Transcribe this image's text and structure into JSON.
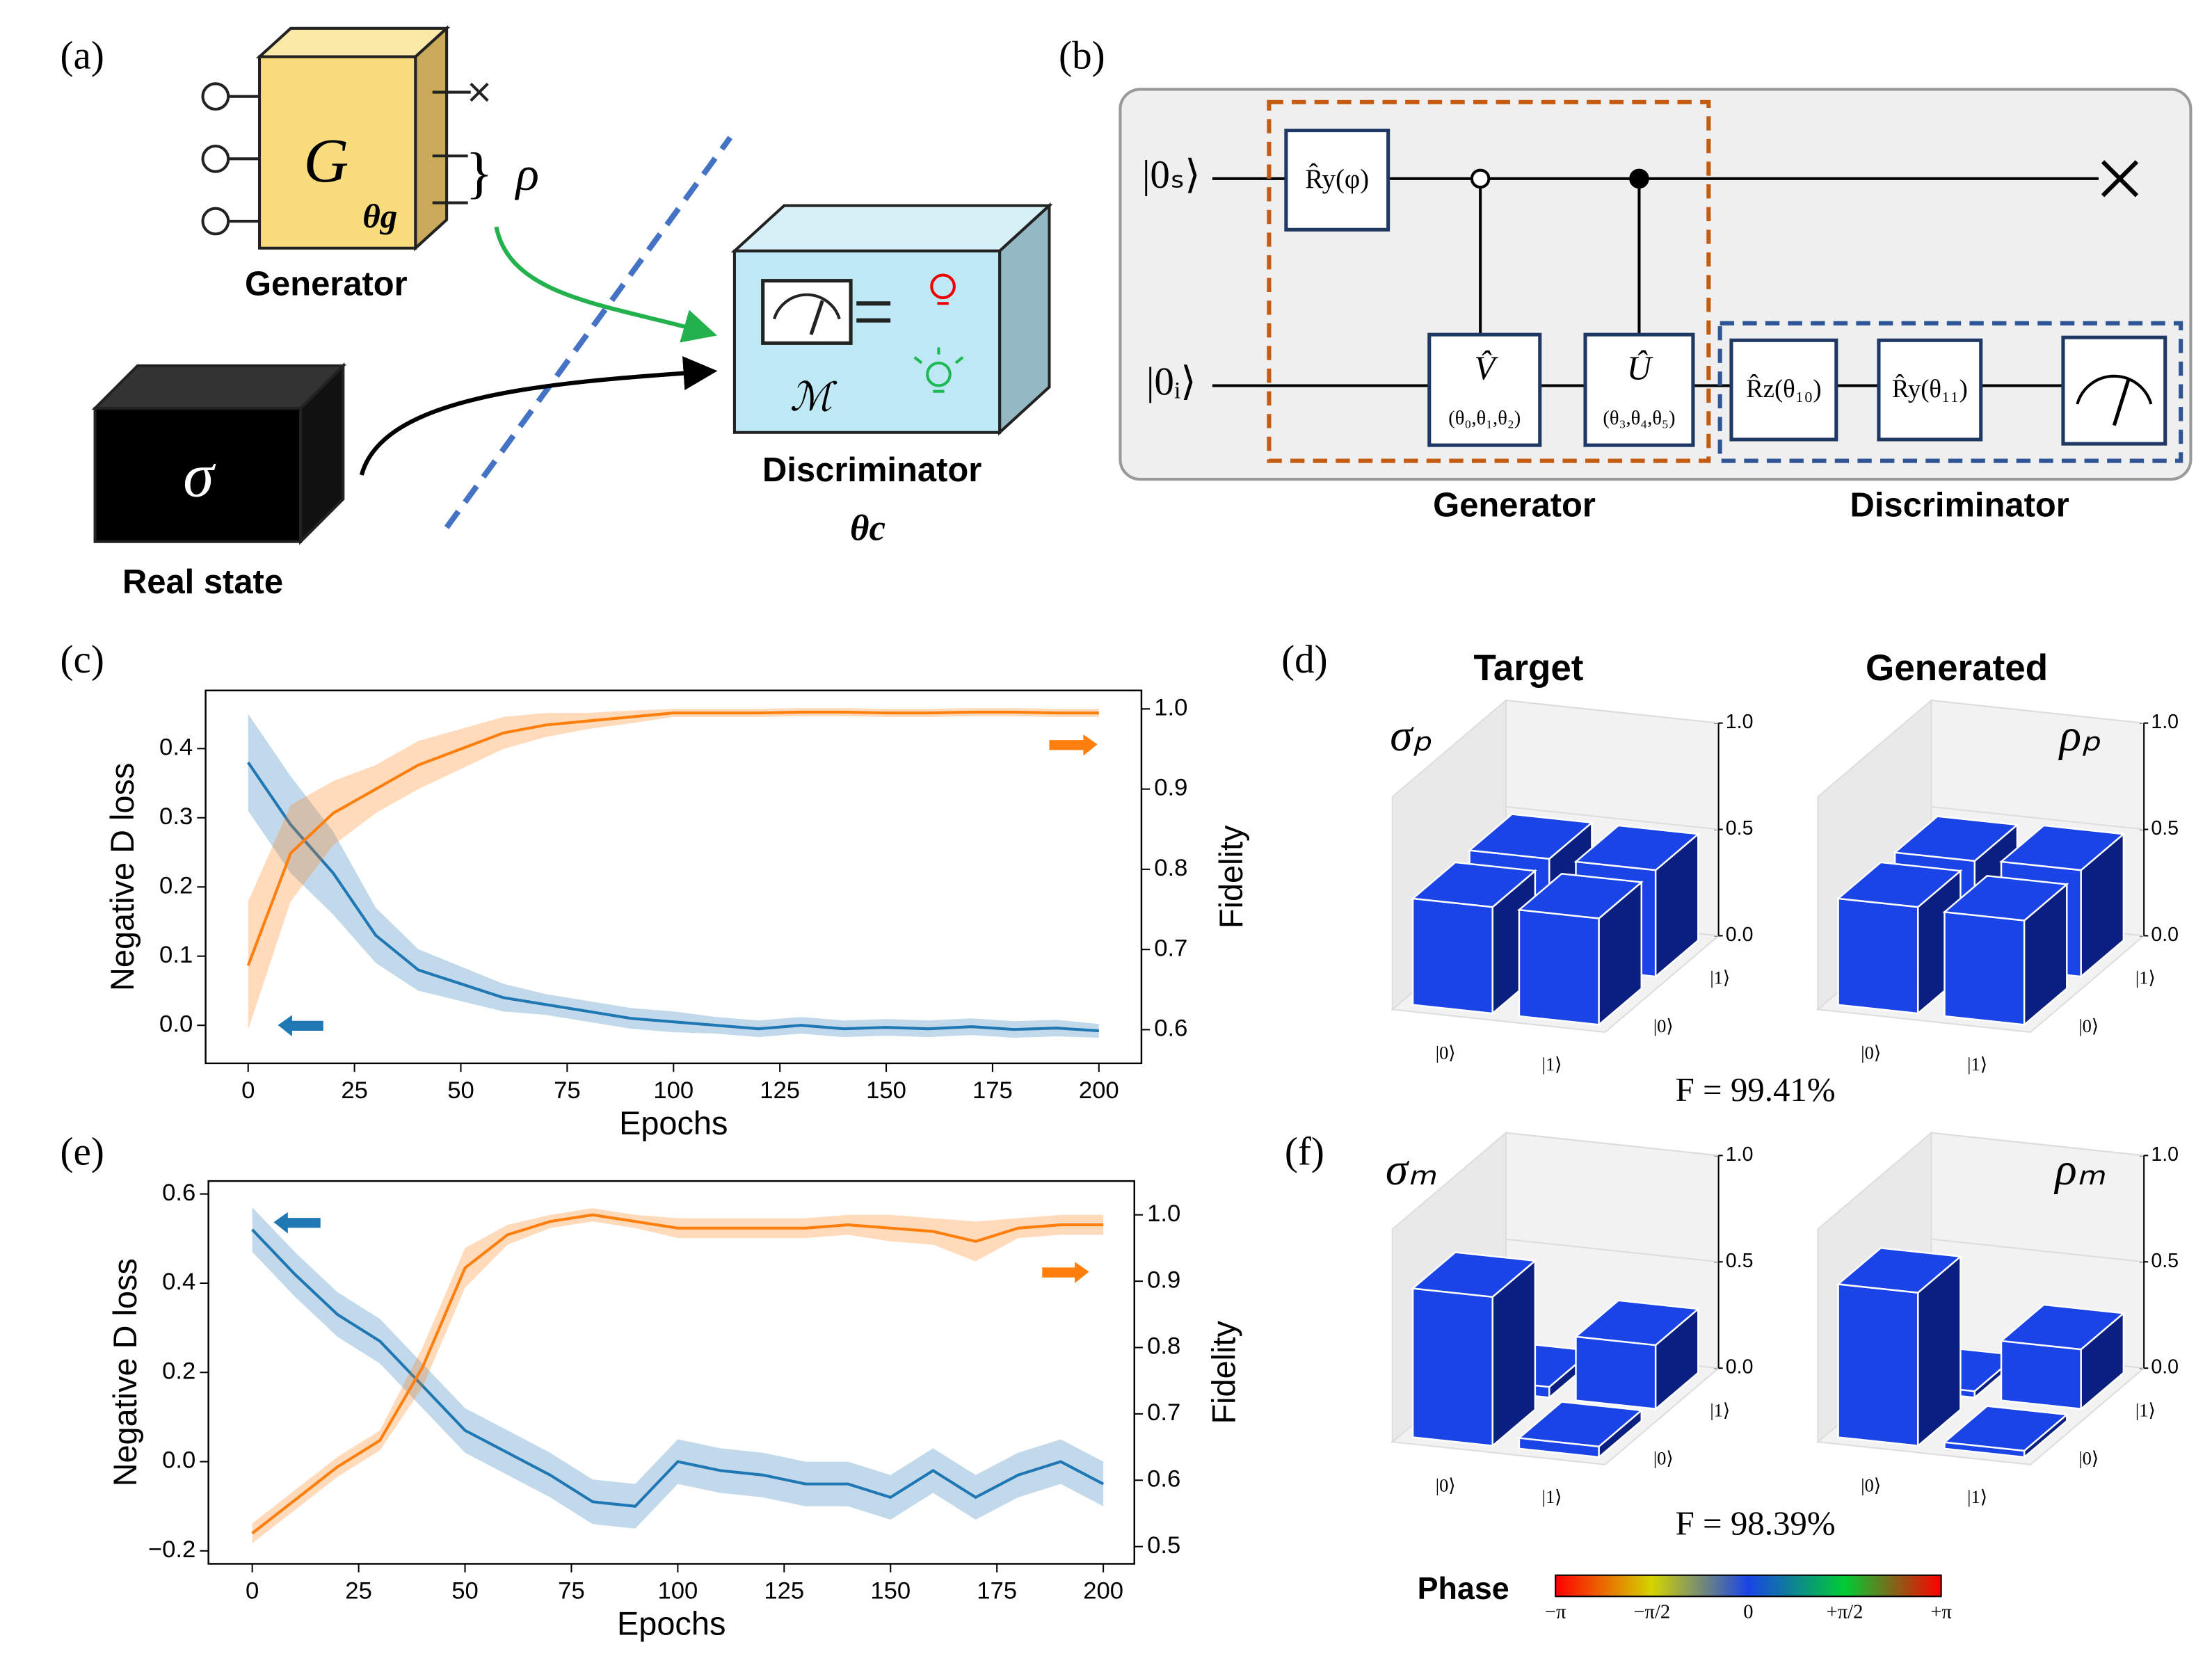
{
  "panel_labels": [
    "(a)",
    "(b)",
    "(c)",
    "(d)",
    "(e)",
    "(f)"
  ],
  "diagram_a": {
    "generator_symbol": "G",
    "generator_param": "θg",
    "output_symbol": "ρ",
    "generator_label": "Generator",
    "real_symbol": "σ",
    "real_label": "Real state",
    "measure_symbol": "ℳ",
    "discriminator_label": "Discriminator",
    "discriminator_param": "θc"
  },
  "diagram_b": {
    "qubits": [
      "|0ₛ⟩",
      "|0ᵢ⟩"
    ],
    "gate_ry_phi": "R̂y(φ)",
    "gate_v": "V̂",
    "gate_v_params": "(θ₀,θ₁,θ₂)",
    "gate_u": "Û",
    "gate_u_params": "(θ₃,θ₄,θ₅)",
    "gate_rz": "R̂z(θ₁₀)",
    "gate_ry": "R̂y(θ₁₁)",
    "generator_label": "Generator",
    "discriminator_label": "Discriminator"
  },
  "column_titles": [
    "Target",
    "Generated"
  ],
  "fidelity_labels": [
    "F = 99.41%",
    "F = 98.39%"
  ],
  "colorbar": {
    "label": "Phase",
    "ticks": [
      "−π",
      "−π/2",
      "0",
      "+π/2",
      "+π"
    ]
  },
  "chart_data": [
    {
      "type": "line",
      "xlabel": "Epochs",
      "ylabel": "Negative D loss",
      "y2label": "Fidelity",
      "x": [
        0,
        10,
        20,
        30,
        40,
        50,
        60,
        70,
        80,
        90,
        100,
        110,
        120,
        130,
        140,
        150,
        160,
        170,
        180,
        190,
        200
      ],
      "xlim": [
        -10,
        210
      ],
      "xticks": [
        0,
        25,
        50,
        75,
        100,
        125,
        150,
        175,
        200
      ],
      "ylim": [
        -0.055,
        0.484
      ],
      "yticks": [
        {
          "value": 0,
          "label": "0.0"
        },
        0.1,
        0.2,
        0.3,
        0.4
      ],
      "y2lim": [
        0.558,
        1.023
      ],
      "y2ticks": [
        0.6,
        0.7,
        0.8,
        0.9,
        {
          "value": 1,
          "label": "1.0"
        }
      ],
      "series": [
        {
          "color": "#1f77b4",
          "values": [
            0.38,
            0.29,
            0.22,
            0.13,
            0.08,
            0.06,
            0.04,
            0.03,
            0.02,
            0.01,
            0.005,
            0.0,
            -0.005,
            0.0,
            -0.005,
            -0.003,
            -0.005,
            -0.002,
            -0.006,
            -0.004,
            -0.008
          ],
          "lower": [
            0.31,
            0.22,
            0.16,
            0.09,
            0.05,
            0.035,
            0.02,
            0.015,
            0.005,
            -0.005,
            -0.01,
            -0.012,
            -0.017,
            -0.012,
            -0.017,
            -0.015,
            -0.017,
            -0.014,
            -0.018,
            -0.016,
            -0.018
          ],
          "upper": [
            0.45,
            0.36,
            0.28,
            0.17,
            0.11,
            0.085,
            0.06,
            0.045,
            0.035,
            0.025,
            0.02,
            0.012,
            0.007,
            0.012,
            0.007,
            0.009,
            0.007,
            0.01,
            0.006,
            0.008,
            0.002
          ]
        },
        {
          "color": "#ff7f0e",
          "axis": "y2",
          "values": [
            0.68,
            0.82,
            0.87,
            0.9,
            0.93,
            0.95,
            0.97,
            0.98,
            0.985,
            0.99,
            0.995,
            0.995,
            0.995,
            0.996,
            0.996,
            0.995,
            0.995,
            0.996,
            0.996,
            0.995,
            0.995
          ],
          "lower": [
            0.6,
            0.76,
            0.83,
            0.87,
            0.9,
            0.925,
            0.95,
            0.965,
            0.975,
            0.982,
            0.99,
            0.99,
            0.99,
            0.991,
            0.991,
            0.99,
            0.99,
            0.991,
            0.991,
            0.99,
            0.99
          ],
          "upper": [
            0.76,
            0.88,
            0.91,
            0.93,
            0.96,
            0.975,
            0.99,
            0.995,
            0.995,
            0.998,
            1.0,
            1.0,
            1.0,
            1.001,
            1.001,
            1.0,
            1.0,
            1.001,
            1.001,
            1.0,
            1.0
          ]
        }
      ]
    },
    {
      "type": "line",
      "xlabel": "Epochs",
      "ylabel": "Negative D loss",
      "y2label": "Fidelity",
      "x": [
        0,
        10,
        20,
        30,
        40,
        50,
        60,
        70,
        80,
        90,
        100,
        110,
        120,
        130,
        140,
        150,
        160,
        170,
        180,
        190,
        200
      ],
      "xlim": [
        -10.3,
        207.3
      ],
      "xticks": [
        0,
        25,
        50,
        75,
        100,
        125,
        150,
        175,
        200
      ],
      "ylim": [
        -0.229,
        0.629
      ],
      "yticks": [
        {
          "value": -0.2,
          "label": "−0.2"
        },
        {
          "value": 0,
          "label": "0.0"
        },
        0.2,
        0.4,
        0.6
      ],
      "y2lim": [
        0.474,
        1.051
      ],
      "y2ticks": [
        0.5,
        0.6,
        0.7,
        0.8,
        0.9,
        {
          "value": 1,
          "label": "1.0"
        }
      ],
      "series": [
        {
          "color": "#1f77b4",
          "values": [
            0.52,
            0.42,
            0.33,
            0.27,
            0.17,
            0.07,
            0.02,
            -0.03,
            -0.09,
            -0.1,
            0.0,
            -0.02,
            -0.03,
            -0.05,
            -0.05,
            -0.08,
            -0.02,
            -0.08,
            -0.03,
            0.0,
            -0.05
          ],
          "lower": [
            0.47,
            0.37,
            0.28,
            0.22,
            0.12,
            0.02,
            -0.03,
            -0.08,
            -0.14,
            -0.15,
            -0.05,
            -0.07,
            -0.08,
            -0.1,
            -0.1,
            -0.13,
            -0.07,
            -0.13,
            -0.08,
            -0.05,
            -0.1
          ],
          "upper": [
            0.57,
            0.47,
            0.38,
            0.32,
            0.22,
            0.12,
            0.07,
            0.02,
            -0.04,
            -0.05,
            0.05,
            0.03,
            0.02,
            0.0,
            0.0,
            -0.03,
            0.03,
            -0.03,
            0.02,
            0.05,
            0.0
          ]
        },
        {
          "color": "#ff7f0e",
          "axis": "y2",
          "values": [
            0.52,
            0.57,
            0.62,
            0.66,
            0.77,
            0.92,
            0.97,
            0.99,
            1.0,
            0.99,
            0.98,
            0.98,
            0.98,
            0.98,
            0.985,
            0.98,
            0.975,
            0.96,
            0.98,
            0.985,
            0.985
          ],
          "lower": [
            0.505,
            0.555,
            0.605,
            0.645,
            0.74,
            0.89,
            0.955,
            0.98,
            0.99,
            0.98,
            0.965,
            0.965,
            0.965,
            0.965,
            0.97,
            0.96,
            0.955,
            0.93,
            0.965,
            0.97,
            0.97
          ],
          "upper": [
            0.535,
            0.585,
            0.635,
            0.675,
            0.8,
            0.95,
            0.985,
            1.0,
            1.01,
            1.0,
            0.995,
            0.995,
            0.995,
            0.995,
            1.0,
            1.0,
            0.995,
            0.99,
            0.995,
            1.0,
            1.0
          ]
        }
      ]
    },
    {
      "type": "bar3d",
      "title": "σₚ",
      "x_labels": [
        "|0⟩",
        "|1⟩"
      ],
      "y_labels": [
        "|0⟩",
        "|1⟩"
      ],
      "values": [
        [
          0.5,
          0.5
        ],
        [
          0.5,
          0.5
        ]
      ],
      "zlim": [
        0,
        1
      ],
      "zticks": [
        {
          "value": 0,
          "label": "0.0"
        },
        0.5,
        {
          "value": 1,
          "label": "1.0"
        }
      ],
      "color": "#1a44e6"
    },
    {
      "type": "bar3d",
      "title": "ρₚ",
      "x_labels": [
        "|0⟩",
        "|1⟩"
      ],
      "y_labels": [
        "|0⟩",
        "|1⟩"
      ],
      "values": [
        [
          0.5,
          0.49
        ],
        [
          0.49,
          0.5
        ]
      ],
      "zlim": [
        0,
        1
      ],
      "zticks": [
        {
          "value": 0,
          "label": "0.0"
        },
        0.5,
        {
          "value": 1,
          "label": "1.0"
        }
      ],
      "color": "#1a44e6"
    },
    {
      "type": "bar3d",
      "title": "σₘ",
      "x_labels": [
        "|0⟩",
        "|1⟩"
      ],
      "y_labels": [
        "|0⟩",
        "|1⟩"
      ],
      "values": [
        [
          0.7,
          0.05
        ],
        [
          0.05,
          0.3
        ]
      ],
      "zlim": [
        0,
        1
      ],
      "zticks": [
        {
          "value": 0,
          "label": "0.0"
        },
        0.5,
        {
          "value": 1,
          "label": "1.0"
        }
      ],
      "color": "#1a44e6"
    },
    {
      "type": "bar3d",
      "title": "ρₘ",
      "x_labels": [
        "|0⟩",
        "|1⟩"
      ],
      "y_labels": [
        "|0⟩",
        "|1⟩"
      ],
      "values": [
        [
          0.72,
          0.03
        ],
        [
          0.03,
          0.28
        ]
      ],
      "zlim": [
        0,
        1
      ],
      "zticks": [
        {
          "value": 0,
          "label": "0.0"
        },
        0.5,
        {
          "value": 1,
          "label": "1.0"
        }
      ],
      "color": "#1a44e6"
    }
  ]
}
